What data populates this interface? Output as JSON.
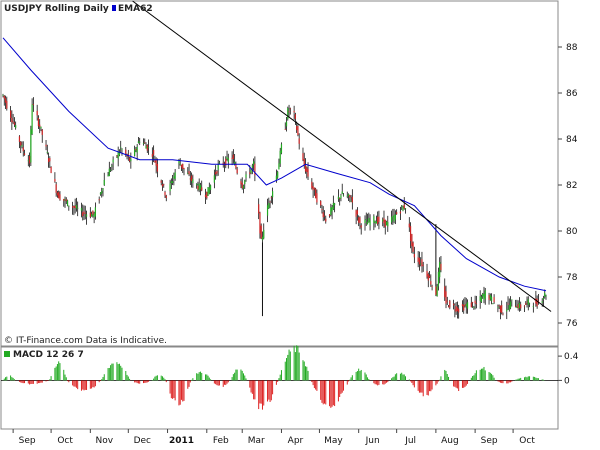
{
  "chart_data": [
    {
      "type": "candlestick",
      "title": "USDJPY  Rolling Daily",
      "legend": [
        {
          "name": "EMA62",
          "color": "#0000cc"
        }
      ],
      "source_note": "© IT-Finance.com Data is Indicative.",
      "ylim": [
        75,
        90
      ],
      "yticks": [
        76,
        78,
        80,
        82,
        84,
        86,
        88
      ],
      "x_range": [
        "2010-08-24",
        "2011-10-27"
      ],
      "xtick_labels": [
        "Sep",
        "Oct",
        "Nov",
        "Dec",
        "2011",
        "Feb",
        "Mar",
        "Apr",
        "May",
        "Jun",
        "Jul",
        "Aug",
        "Sep",
        "Oct"
      ],
      "xtick_dates": [
        "2010-09-01",
        "2010-10-01",
        "2010-11-01",
        "2010-12-01",
        "2011-01-01",
        "2011-02-01",
        "2011-03-01",
        "2011-04-01",
        "2011-05-01",
        "2011-06-01",
        "2011-07-01",
        "2011-08-01",
        "2011-09-01",
        "2011-10-01"
      ],
      "price_path": [
        [
          "2010-08-24",
          85.9
        ],
        [
          "2010-09-02",
          84.6
        ],
        [
          "2010-09-08",
          83.6
        ],
        [
          "2010-09-14",
          83.0
        ],
        [
          "2010-09-16",
          85.6
        ],
        [
          "2010-09-24",
          84.2
        ],
        [
          "2010-10-06",
          81.6
        ],
        [
          "2010-10-14",
          81.2
        ],
        [
          "2010-10-26",
          80.8
        ],
        [
          "2010-11-04",
          80.7
        ],
        [
          "2010-11-12",
          82.2
        ],
        [
          "2010-11-25",
          83.6
        ],
        [
          "2010-12-03",
          83.0
        ],
        [
          "2010-12-10",
          84.0
        ],
        [
          "2010-12-20",
          83.4
        ],
        [
          "2010-12-31",
          81.5
        ],
        [
          "2011-01-10",
          83.0
        ],
        [
          "2011-01-20",
          82.2
        ],
        [
          "2011-02-01",
          81.6
        ],
        [
          "2011-02-10",
          82.8
        ],
        [
          "2011-02-21",
          83.2
        ],
        [
          "2011-03-01",
          82.0
        ],
        [
          "2011-03-10",
          82.9
        ],
        [
          "2011-03-16",
          79.5
        ],
        [
          "2011-03-20",
          80.8
        ],
        [
          "2011-03-28",
          82.4
        ],
        [
          "2011-04-06",
          85.2
        ],
        [
          "2011-04-10",
          85.3
        ],
        [
          "2011-04-18",
          83.0
        ],
        [
          "2011-04-26",
          81.8
        ],
        [
          "2011-05-06",
          80.5
        ],
        [
          "2011-05-18",
          81.6
        ],
        [
          "2011-05-26",
          81.4
        ],
        [
          "2011-06-02",
          80.3
        ],
        [
          "2011-06-14",
          80.5
        ],
        [
          "2011-06-24",
          80.3
        ],
        [
          "2011-07-05",
          81.0
        ],
        [
          "2011-07-08",
          81.1
        ],
        [
          "2011-07-14",
          79.0
        ],
        [
          "2011-07-22",
          78.5
        ],
        [
          "2011-08-01",
          77.3
        ],
        [
          "2011-08-04",
          78.5
        ],
        [
          "2011-08-09",
          76.9
        ],
        [
          "2011-08-12",
          76.8
        ],
        [
          "2011-08-19",
          76.6
        ],
        [
          "2011-08-26",
          76.8
        ],
        [
          "2011-09-02",
          76.8
        ],
        [
          "2011-09-09",
          77.3
        ],
        [
          "2011-09-16",
          76.9
        ],
        [
          "2011-09-23",
          76.5
        ],
        [
          "2011-09-30",
          76.9
        ],
        [
          "2011-10-07",
          76.7
        ],
        [
          "2011-10-14",
          76.9
        ],
        [
          "2011-10-21",
          76.9
        ],
        [
          "2011-10-27",
          77.3
        ]
      ],
      "spikes": [
        {
          "date": "2011-03-17",
          "high": 79.5,
          "low": 76.3
        },
        {
          "date": "2011-08-01",
          "high": 80.3,
          "low": 77.6
        }
      ],
      "ema62": [
        [
          "2010-08-24",
          88.4
        ],
        [
          "2010-09-15",
          87.0
        ],
        [
          "2010-10-15",
          85.2
        ],
        [
          "2010-11-15",
          83.6
        ],
        [
          "2010-12-10",
          83.1
        ],
        [
          "2011-01-05",
          83.1
        ],
        [
          "2011-02-05",
          82.9
        ],
        [
          "2011-03-05",
          82.9
        ],
        [
          "2011-03-20",
          82.0
        ],
        [
          "2011-04-01",
          82.3
        ],
        [
          "2011-04-20",
          82.9
        ],
        [
          "2011-05-15",
          82.5
        ],
        [
          "2011-06-10",
          82.1
        ],
        [
          "2011-06-25",
          81.6
        ],
        [
          "2011-07-15",
          81.1
        ],
        [
          "2011-08-05",
          79.8
        ],
        [
          "2011-08-25",
          78.8
        ],
        [
          "2011-09-20",
          78.0
        ],
        [
          "2011-10-10",
          77.6
        ],
        [
          "2011-10-27",
          77.4
        ]
      ],
      "trendline": [
        [
          "2010-11-27",
          90.3
        ],
        [
          "2011-10-31",
          76.5
        ]
      ]
    },
    {
      "type": "histogram",
      "title": "MACD 12 26 7",
      "ylim": [
        -0.8,
        0.55
      ],
      "yticks": [
        0.4,
        0
      ],
      "ytick_labels": [
        "0.4",
        "0"
      ],
      "colors": {
        "positive": "#22aa22",
        "negative": "#dd2222"
      },
      "lobes": [
        [
          "2010-08-24",
          "2010-09-03",
          0.08
        ],
        [
          "2010-09-03",
          "2010-09-30",
          -0.06
        ],
        [
          "2010-09-30",
          "2010-10-14",
          0.28
        ],
        [
          "2010-10-14",
          "2010-11-10",
          -0.17
        ],
        [
          "2010-11-10",
          "2010-12-03",
          0.3
        ],
        [
          "2010-12-03",
          "2010-12-20",
          -0.05
        ],
        [
          "2010-12-20",
          "2010-12-31",
          0.1
        ],
        [
          "2010-12-31",
          "2011-01-20",
          -0.4
        ],
        [
          "2011-01-20",
          "2011-02-05",
          0.14
        ],
        [
          "2011-02-05",
          "2011-02-20",
          -0.1
        ],
        [
          "2011-02-20",
          "2011-03-05",
          0.2
        ],
        [
          "2011-03-05",
          "2011-03-30",
          -0.45
        ],
        [
          "2011-03-30",
          "2011-04-25",
          0.52
        ],
        [
          "2011-04-25",
          "2011-05-25",
          -0.42
        ],
        [
          "2011-05-25",
          "2011-06-10",
          0.18
        ],
        [
          "2011-06-10",
          "2011-06-26",
          -0.08
        ],
        [
          "2011-06-26",
          "2011-07-12",
          0.12
        ],
        [
          "2011-07-12",
          "2011-08-04",
          -0.24
        ],
        [
          "2011-08-04",
          "2011-08-12",
          0.16
        ],
        [
          "2011-08-12",
          "2011-08-28",
          -0.16
        ],
        [
          "2011-08-28",
          "2011-09-18",
          0.2
        ],
        [
          "2011-09-18",
          "2011-10-02",
          -0.05
        ],
        [
          "2011-10-02",
          "2011-10-27",
          0.06
        ]
      ]
    }
  ]
}
